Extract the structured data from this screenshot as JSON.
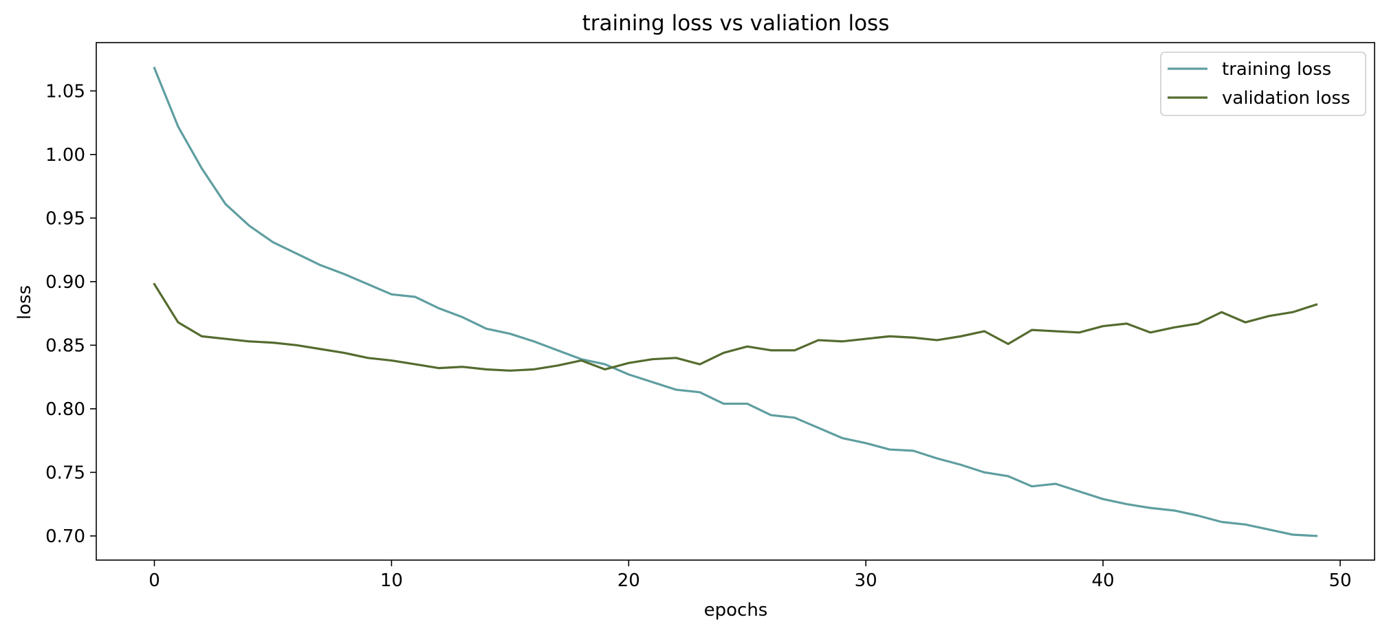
{
  "chart_data": {
    "type": "line",
    "title": "training loss vs valiation loss",
    "xlabel": "epochs",
    "ylabel": "loss",
    "xlim": [
      -2.45,
      51.45
    ],
    "ylim": [
      0.681,
      1.088
    ],
    "xticks": [
      0,
      10,
      20,
      30,
      40,
      50
    ],
    "xtick_labels": [
      "0",
      "10",
      "20",
      "30",
      "40",
      "50"
    ],
    "yticks": [
      0.7,
      0.75,
      0.8,
      0.85,
      0.9,
      0.95,
      1.0,
      1.05
    ],
    "ytick_labels": [
      "0.70",
      "0.75",
      "0.80",
      "0.85",
      "0.90",
      "0.95",
      "1.00",
      "1.05"
    ],
    "grid": false,
    "legend_position": "top-right",
    "x": [
      0,
      1,
      2,
      3,
      4,
      5,
      6,
      7,
      8,
      9,
      10,
      11,
      12,
      13,
      14,
      15,
      16,
      17,
      18,
      19,
      20,
      21,
      22,
      23,
      24,
      25,
      26,
      27,
      28,
      29,
      30,
      31,
      32,
      33,
      34,
      35,
      36,
      37,
      38,
      39,
      40,
      41,
      42,
      43,
      44,
      45,
      46,
      47,
      48,
      49
    ],
    "series": [
      {
        "name": "training loss",
        "color": "#5f9ea0",
        "values": [
          1.068,
          1.022,
          0.989,
          0.961,
          0.944,
          0.931,
          0.922,
          0.913,
          0.906,
          0.898,
          0.89,
          0.888,
          0.879,
          0.872,
          0.863,
          0.859,
          0.853,
          0.846,
          0.839,
          0.835,
          0.827,
          0.821,
          0.815,
          0.813,
          0.804,
          0.804,
          0.795,
          0.793,
          0.785,
          0.777,
          0.773,
          0.768,
          0.767,
          0.761,
          0.756,
          0.75,
          0.747,
          0.739,
          0.741,
          0.735,
          0.729,
          0.725,
          0.722,
          0.72,
          0.716,
          0.711,
          0.709,
          0.705,
          0.701,
          0.7
        ]
      },
      {
        "name": "validation loss",
        "color": "#556b2f",
        "values": [
          0.898,
          0.868,
          0.857,
          0.855,
          0.853,
          0.852,
          0.85,
          0.847,
          0.844,
          0.84,
          0.838,
          0.835,
          0.832,
          0.833,
          0.831,
          0.83,
          0.831,
          0.834,
          0.838,
          0.831,
          0.836,
          0.839,
          0.84,
          0.835,
          0.844,
          0.849,
          0.846,
          0.846,
          0.854,
          0.853,
          0.855,
          0.857,
          0.856,
          0.854,
          0.857,
          0.861,
          0.851,
          0.862,
          0.861,
          0.86,
          0.865,
          0.867,
          0.86,
          0.864,
          0.867,
          0.876,
          0.868,
          0.873,
          0.876,
          0.882
        ]
      }
    ]
  }
}
